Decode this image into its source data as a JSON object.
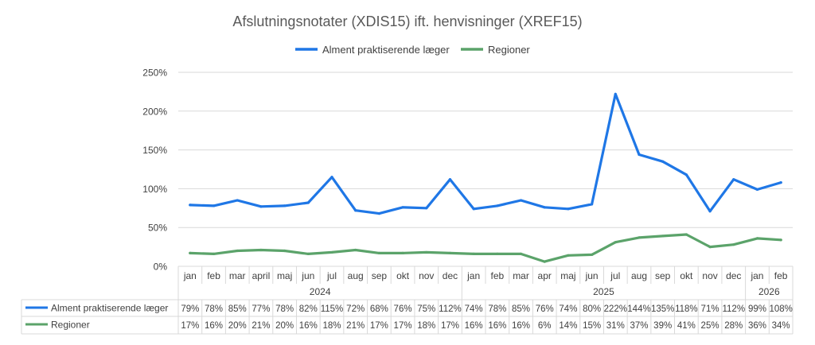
{
  "chart_data": {
    "type": "line",
    "title": "Afslutningsnotater (XDIS15) ift. henvisninger (XREF15)",
    "ylim": [
      0,
      250
    ],
    "yticks": [
      "0%",
      "50%",
      "100%",
      "150%",
      "200%",
      "250%"
    ],
    "grid": "horizontal",
    "legend": "top-center",
    "categories": [
      "jan",
      "feb",
      "mar",
      "april",
      "maj",
      "jun",
      "jul",
      "aug",
      "sep",
      "okt",
      "nov",
      "dec",
      "jan",
      "feb",
      "mar",
      "apr",
      "maj",
      "jun",
      "jul",
      "aug",
      "sep",
      "okt",
      "nov",
      "dec",
      "jan",
      "feb"
    ],
    "years": [
      {
        "label": "2024",
        "start": 0,
        "end": 11
      },
      {
        "label": "2025",
        "start": 12,
        "end": 23
      },
      {
        "label": "2026",
        "start": 24,
        "end": 25
      }
    ],
    "series": [
      {
        "name": "Alment praktiserende læger",
        "color": "#1f77e6",
        "values": [
          79,
          78,
          85,
          77,
          78,
          82,
          115,
          72,
          68,
          76,
          75,
          112,
          74,
          78,
          85,
          76,
          74,
          80,
          222,
          144,
          135,
          118,
          71,
          112,
          99,
          108
        ],
        "labels": [
          "79%",
          "78%",
          "85%",
          "77%",
          "78%",
          "82%",
          "115%",
          "72%",
          "68%",
          "76%",
          "75%",
          "112%",
          "74%",
          "78%",
          "85%",
          "76%",
          "74%",
          "80%",
          "222%",
          "144%",
          "135%",
          "118%",
          "71%",
          "112%",
          "99%",
          "108%"
        ]
      },
      {
        "name": "Regioner",
        "color": "#5ba36a",
        "values": [
          17,
          16,
          20,
          21,
          20,
          16,
          18,
          21,
          17,
          17,
          18,
          17,
          16,
          16,
          16,
          6,
          14,
          15,
          31,
          37,
          39,
          41,
          25,
          28,
          36,
          34
        ],
        "labels": [
          "17%",
          "16%",
          "20%",
          "21%",
          "20%",
          "16%",
          "18%",
          "21%",
          "17%",
          "17%",
          "18%",
          "17%",
          "16%",
          "16%",
          "16%",
          "6%",
          "14%",
          "15%",
          "31%",
          "37%",
          "39%",
          "41%",
          "25%",
          "28%",
          "36%",
          "34%"
        ]
      }
    ]
  }
}
